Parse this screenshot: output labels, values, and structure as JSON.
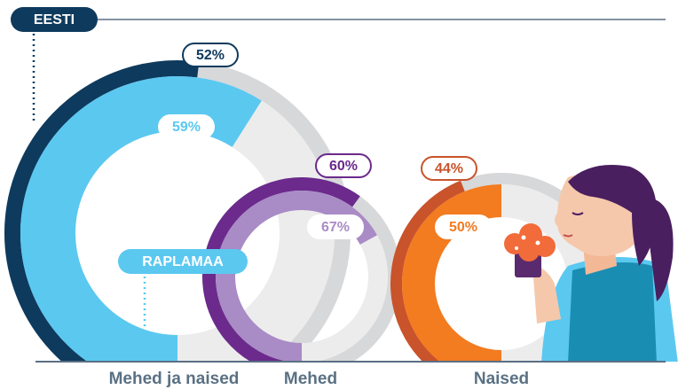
{
  "chart_data": {
    "type": "donut",
    "categories": [
      "Mehed ja naised",
      "Mehed",
      "Naised"
    ],
    "ylim": [
      0,
      100
    ],
    "series": [
      {
        "name": "EESTI",
        "color": "#0e3a5d",
        "colors": [
          "#0e3a5d",
          "#6b2a8c",
          "#c9532a"
        ],
        "values": [
          52,
          60,
          44
        ],
        "value_labels": [
          "52%",
          "60%",
          "44%"
        ]
      },
      {
        "name": "RAPLAMAA",
        "color": "#5bc8f0",
        "colors": [
          "#5bc8f0",
          "#a98bc6",
          "#f37b20"
        ],
        "values": [
          59,
          67,
          50
        ],
        "value_labels": [
          "59%",
          "67%",
          "50%"
        ]
      }
    ]
  }
}
